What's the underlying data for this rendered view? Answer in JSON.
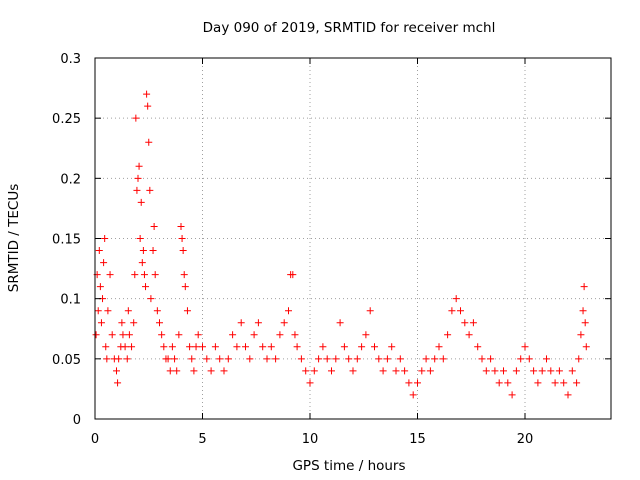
{
  "chart_data": {
    "type": "scatter",
    "title": "Day 090 of 2019, SRMTID for receiver mchl",
    "xlabel": "GPS time / hours",
    "ylabel": "SRMTID / TECUs",
    "xlim": [
      0,
      24
    ],
    "ylim": [
      0,
      0.3
    ],
    "grid": true,
    "marker": "plus",
    "colors": {
      "points": "#ff0000",
      "grid": "#a0a0a0"
    },
    "x_ticks": [
      {
        "value": 0,
        "label": "0"
      },
      {
        "value": 5,
        "label": "5"
      },
      {
        "value": 10,
        "label": "10"
      },
      {
        "value": 15,
        "label": "15"
      },
      {
        "value": 20,
        "label": "20"
      }
    ],
    "y_ticks": [
      {
        "value": 0,
        "label": "0"
      },
      {
        "value": 0.05,
        "label": "0.05"
      },
      {
        "value": 0.1,
        "label": "0.1"
      },
      {
        "value": 0.15,
        "label": "0.15"
      },
      {
        "value": 0.2,
        "label": "0.2"
      },
      {
        "value": 0.25,
        "label": "0.25"
      },
      {
        "value": 0.3,
        "label": "0.3"
      }
    ],
    "series": [
      {
        "name": "SRMTID",
        "points": [
          [
            0.05,
            0.07
          ],
          [
            0.1,
            0.12
          ],
          [
            0.15,
            0.09
          ],
          [
            0.2,
            0.14
          ],
          [
            0.25,
            0.11
          ],
          [
            0.3,
            0.08
          ],
          [
            0.35,
            0.1
          ],
          [
            0.4,
            0.13
          ],
          [
            0.45,
            0.15
          ],
          [
            0.5,
            0.06
          ],
          [
            0.55,
            0.05
          ],
          [
            0.6,
            0.09
          ],
          [
            0.7,
            0.12
          ],
          [
            0.8,
            0.07
          ],
          [
            0.9,
            0.05
          ],
          [
            1.0,
            0.04
          ],
          [
            1.05,
            0.03
          ],
          [
            1.1,
            0.05
          ],
          [
            1.2,
            0.06
          ],
          [
            1.25,
            0.08
          ],
          [
            1.3,
            0.07
          ],
          [
            1.4,
            0.06
          ],
          [
            1.5,
            0.05
          ],
          [
            1.55,
            0.09
          ],
          [
            1.6,
            0.07
          ],
          [
            1.7,
            0.06
          ],
          [
            1.8,
            0.08
          ],
          [
            1.85,
            0.12
          ],
          [
            1.9,
            0.25
          ],
          [
            1.95,
            0.19
          ],
          [
            2.0,
            0.2
          ],
          [
            2.05,
            0.21
          ],
          [
            2.1,
            0.15
          ],
          [
            2.15,
            0.18
          ],
          [
            2.2,
            0.13
          ],
          [
            2.25,
            0.14
          ],
          [
            2.3,
            0.12
          ],
          [
            2.35,
            0.11
          ],
          [
            2.4,
            0.27
          ],
          [
            2.45,
            0.26
          ],
          [
            2.5,
            0.23
          ],
          [
            2.55,
            0.19
          ],
          [
            2.6,
            0.1
          ],
          [
            2.7,
            0.14
          ],
          [
            2.75,
            0.16
          ],
          [
            2.8,
            0.12
          ],
          [
            2.9,
            0.09
          ],
          [
            3.0,
            0.08
          ],
          [
            3.1,
            0.07
          ],
          [
            3.2,
            0.06
          ],
          [
            3.3,
            0.05
          ],
          [
            3.4,
            0.05
          ],
          [
            3.5,
            0.04
          ],
          [
            3.6,
            0.06
          ],
          [
            3.7,
            0.05
          ],
          [
            3.8,
            0.04
          ],
          [
            3.9,
            0.07
          ],
          [
            4.0,
            0.16
          ],
          [
            4.05,
            0.15
          ],
          [
            4.1,
            0.14
          ],
          [
            4.15,
            0.12
          ],
          [
            4.2,
            0.11
          ],
          [
            4.3,
            0.09
          ],
          [
            4.4,
            0.06
          ],
          [
            4.5,
            0.05
          ],
          [
            4.6,
            0.04
          ],
          [
            4.7,
            0.06
          ],
          [
            4.8,
            0.07
          ],
          [
            5.0,
            0.06
          ],
          [
            5.2,
            0.05
          ],
          [
            5.4,
            0.04
          ],
          [
            5.6,
            0.06
          ],
          [
            5.8,
            0.05
          ],
          [
            6.0,
            0.04
          ],
          [
            6.2,
            0.05
          ],
          [
            6.4,
            0.07
          ],
          [
            6.6,
            0.06
          ],
          [
            6.8,
            0.08
          ],
          [
            7.0,
            0.06
          ],
          [
            7.2,
            0.05
          ],
          [
            7.4,
            0.07
          ],
          [
            7.6,
            0.08
          ],
          [
            7.8,
            0.06
          ],
          [
            8.0,
            0.05
          ],
          [
            8.2,
            0.06
          ],
          [
            8.4,
            0.05
          ],
          [
            8.6,
            0.07
          ],
          [
            8.8,
            0.08
          ],
          [
            9.0,
            0.09
          ],
          [
            9.1,
            0.12
          ],
          [
            9.2,
            0.12
          ],
          [
            9.3,
            0.07
          ],
          [
            9.4,
            0.06
          ],
          [
            9.6,
            0.05
          ],
          [
            9.8,
            0.04
          ],
          [
            10.0,
            0.03
          ],
          [
            10.2,
            0.04
          ],
          [
            10.4,
            0.05
          ],
          [
            10.6,
            0.06
          ],
          [
            10.8,
            0.05
          ],
          [
            11.0,
            0.04
          ],
          [
            11.2,
            0.05
          ],
          [
            11.4,
            0.08
          ],
          [
            11.6,
            0.06
          ],
          [
            11.8,
            0.05
          ],
          [
            12.0,
            0.04
          ],
          [
            12.2,
            0.05
          ],
          [
            12.4,
            0.06
          ],
          [
            12.6,
            0.07
          ],
          [
            12.8,
            0.09
          ],
          [
            13.0,
            0.06
          ],
          [
            13.2,
            0.05
          ],
          [
            13.4,
            0.04
          ],
          [
            13.6,
            0.05
          ],
          [
            13.8,
            0.06
          ],
          [
            14.0,
            0.04
          ],
          [
            14.2,
            0.05
          ],
          [
            14.4,
            0.04
          ],
          [
            14.6,
            0.03
          ],
          [
            14.8,
            0.02
          ],
          [
            15.0,
            0.03
          ],
          [
            15.2,
            0.04
          ],
          [
            15.4,
            0.05
          ],
          [
            15.6,
            0.04
          ],
          [
            15.8,
            0.05
          ],
          [
            16.0,
            0.06
          ],
          [
            16.2,
            0.05
          ],
          [
            16.4,
            0.07
          ],
          [
            16.6,
            0.09
          ],
          [
            16.8,
            0.1
          ],
          [
            17.0,
            0.09
          ],
          [
            17.2,
            0.08
          ],
          [
            17.4,
            0.07
          ],
          [
            17.6,
            0.08
          ],
          [
            17.8,
            0.06
          ],
          [
            18.0,
            0.05
          ],
          [
            18.2,
            0.04
          ],
          [
            18.4,
            0.05
          ],
          [
            18.6,
            0.04
          ],
          [
            18.8,
            0.03
          ],
          [
            19.0,
            0.04
          ],
          [
            19.2,
            0.03
          ],
          [
            19.4,
            0.02
          ],
          [
            19.6,
            0.04
          ],
          [
            19.8,
            0.05
          ],
          [
            20.0,
            0.06
          ],
          [
            20.2,
            0.05
          ],
          [
            20.4,
            0.04
          ],
          [
            20.6,
            0.03
          ],
          [
            20.8,
            0.04
          ],
          [
            21.0,
            0.05
          ],
          [
            21.2,
            0.04
          ],
          [
            21.4,
            0.03
          ],
          [
            21.6,
            0.04
          ],
          [
            21.8,
            0.03
          ],
          [
            22.0,
            0.02
          ],
          [
            22.2,
            0.04
          ],
          [
            22.4,
            0.03
          ],
          [
            22.5,
            0.05
          ],
          [
            22.6,
            0.07
          ],
          [
            22.7,
            0.09
          ],
          [
            22.75,
            0.11
          ],
          [
            22.8,
            0.08
          ],
          [
            22.85,
            0.06
          ]
        ]
      }
    ]
  }
}
